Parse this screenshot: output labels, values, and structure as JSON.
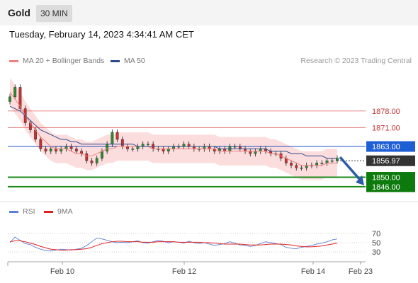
{
  "header": {
    "symbol": "Gold",
    "timeframe": "30 MIN"
  },
  "date_line": "Tuesday, February 14, 2023 4:34:41 AM CET",
  "legend": [
    {
      "label": "MA 20 + Bollinger Bands",
      "color": "#f08080"
    },
    {
      "label": "MA 50",
      "color": "#2b4c8c"
    }
  ],
  "copyright": "Research © 2023 Trading Central",
  "rsi_legend": [
    {
      "label": "RSI",
      "color": "#5b7fd6"
    },
    {
      "label": "9MA",
      "color": "#e02020"
    }
  ],
  "colors": {
    "resistance_line": "#e06060",
    "pivot_line": "#2050c0",
    "support_line": "#1a8a1a",
    "support_label_bg": "#0c7a0c",
    "pivot_label_bg": "#1f5fd6",
    "last_price_bg": "#333333",
    "bollinger_fill": "#fbd5d5",
    "up_candle": "#2e8b2e",
    "down_candle": "#c83232",
    "arrow": "#2b5aa8"
  },
  "chart_data": [
    {
      "type": "candlestick",
      "title": "",
      "x_tick_labels": [
        "Feb 10",
        "Feb 12",
        "Feb 14",
        "Feb 23"
      ],
      "ylim": [
        1840,
        1895
      ],
      "levels": [
        {
          "value": 1878.0,
          "label": "1878.00",
          "kind": "resistance"
        },
        {
          "value": 1871.0,
          "label": "1871.00",
          "kind": "resistance"
        },
        {
          "value": 1863.0,
          "label": "1863.00",
          "kind": "pivot"
        },
        {
          "value": 1850.0,
          "label": "1850.00",
          "kind": "support"
        },
        {
          "value": 1846.0,
          "label": "1846.00",
          "kind": "support"
        }
      ],
      "last_price": {
        "value": 1856.97,
        "label": "1856.97"
      },
      "close_series": [
        1884,
        1888,
        1879,
        1873,
        1870,
        1866,
        1862,
        1861,
        1862,
        1861,
        1862,
        1863,
        1862,
        1861,
        1860,
        1857,
        1856,
        1858,
        1861,
        1864,
        1869,
        1866,
        1863,
        1862,
        1862,
        1863,
        1864,
        1864,
        1862,
        1862,
        1861,
        1862,
        1863,
        1863,
        1864,
        1863,
        1862,
        1862,
        1863,
        1862,
        1861,
        1862,
        1861,
        1863,
        1863,
        1862,
        1861,
        1860,
        1861,
        1862,
        1861,
        1860,
        1860,
        1858,
        1856,
        1855,
        1854,
        1854,
        1855,
        1855,
        1856,
        1856,
        1857,
        1857,
        1858
      ],
      "ma20_series": [
        1886,
        1883,
        1880,
        1876,
        1873,
        1870,
        1867,
        1865,
        1863,
        1862,
        1862,
        1862,
        1861,
        1860,
        1860,
        1859,
        1859,
        1860,
        1861,
        1862,
        1862,
        1863,
        1863,
        1863,
        1863,
        1863,
        1863,
        1863,
        1862,
        1862,
        1862,
        1862,
        1862,
        1862,
        1862,
        1862,
        1862,
        1862,
        1862,
        1862,
        1862,
        1861,
        1861,
        1861,
        1861,
        1861,
        1861,
        1861,
        1861,
        1861,
        1861,
        1860,
        1860,
        1859,
        1858,
        1857,
        1856,
        1855,
        1855,
        1855,
        1855,
        1855,
        1856,
        1856,
        1856
      ],
      "ma50_series": [
        1880,
        1879,
        1878,
        1876,
        1874,
        1872,
        1870,
        1869,
        1868,
        1867,
        1866,
        1866,
        1865,
        1865,
        1864,
        1864,
        1864,
        1864,
        1864,
        1864,
        1864,
        1864,
        1864,
        1864,
        1864,
        1863,
        1863,
        1863,
        1863,
        1863,
        1863,
        1863,
        1863,
        1863,
        1863,
        1863,
        1863,
        1863,
        1863,
        1863,
        1863,
        1862,
        1862,
        1862,
        1862,
        1862,
        1862,
        1862,
        1862,
        1862,
        1862,
        1861,
        1861,
        1861,
        1861,
        1860,
        1860,
        1860,
        1859,
        1859,
        1859,
        1859,
        1858,
        1858,
        1858
      ]
    },
    {
      "type": "line",
      "title": "",
      "y_tick_labels": [
        "70",
        "50",
        "30"
      ],
      "y_ticks": [
        70,
        50,
        30
      ],
      "ylim": [
        15,
        85
      ],
      "series": [
        {
          "name": "RSI",
          "values": [
            50,
            62,
            55,
            48,
            46,
            40,
            36,
            33,
            32,
            34,
            36,
            35,
            34,
            36,
            38,
            44,
            52,
            60,
            58,
            55,
            52,
            50,
            51,
            50,
            52,
            54,
            50,
            49,
            52,
            55,
            53,
            50,
            52,
            51,
            49,
            53,
            50,
            48,
            50,
            47,
            44,
            46,
            48,
            52,
            49,
            45,
            44,
            42,
            44,
            48,
            52,
            50,
            48,
            46,
            40,
            38,
            37,
            40,
            42,
            44,
            47,
            49,
            52,
            56,
            58
          ]
        },
        {
          "name": "9MA",
          "values": [
            52,
            54,
            54,
            52,
            49,
            46,
            42,
            39,
            36,
            35,
            34,
            34,
            35,
            35,
            36,
            37,
            40,
            44,
            48,
            50,
            52,
            53,
            53,
            52,
            52,
            52,
            51,
            51,
            51,
            52,
            52,
            52,
            52,
            51,
            51,
            51,
            51,
            51,
            50,
            50,
            49,
            48,
            47,
            47,
            47,
            47,
            46,
            45,
            45,
            45,
            46,
            47,
            47,
            47,
            46,
            45,
            43,
            42,
            41,
            41,
            42,
            43,
            45,
            47,
            49
          ]
        }
      ]
    }
  ]
}
